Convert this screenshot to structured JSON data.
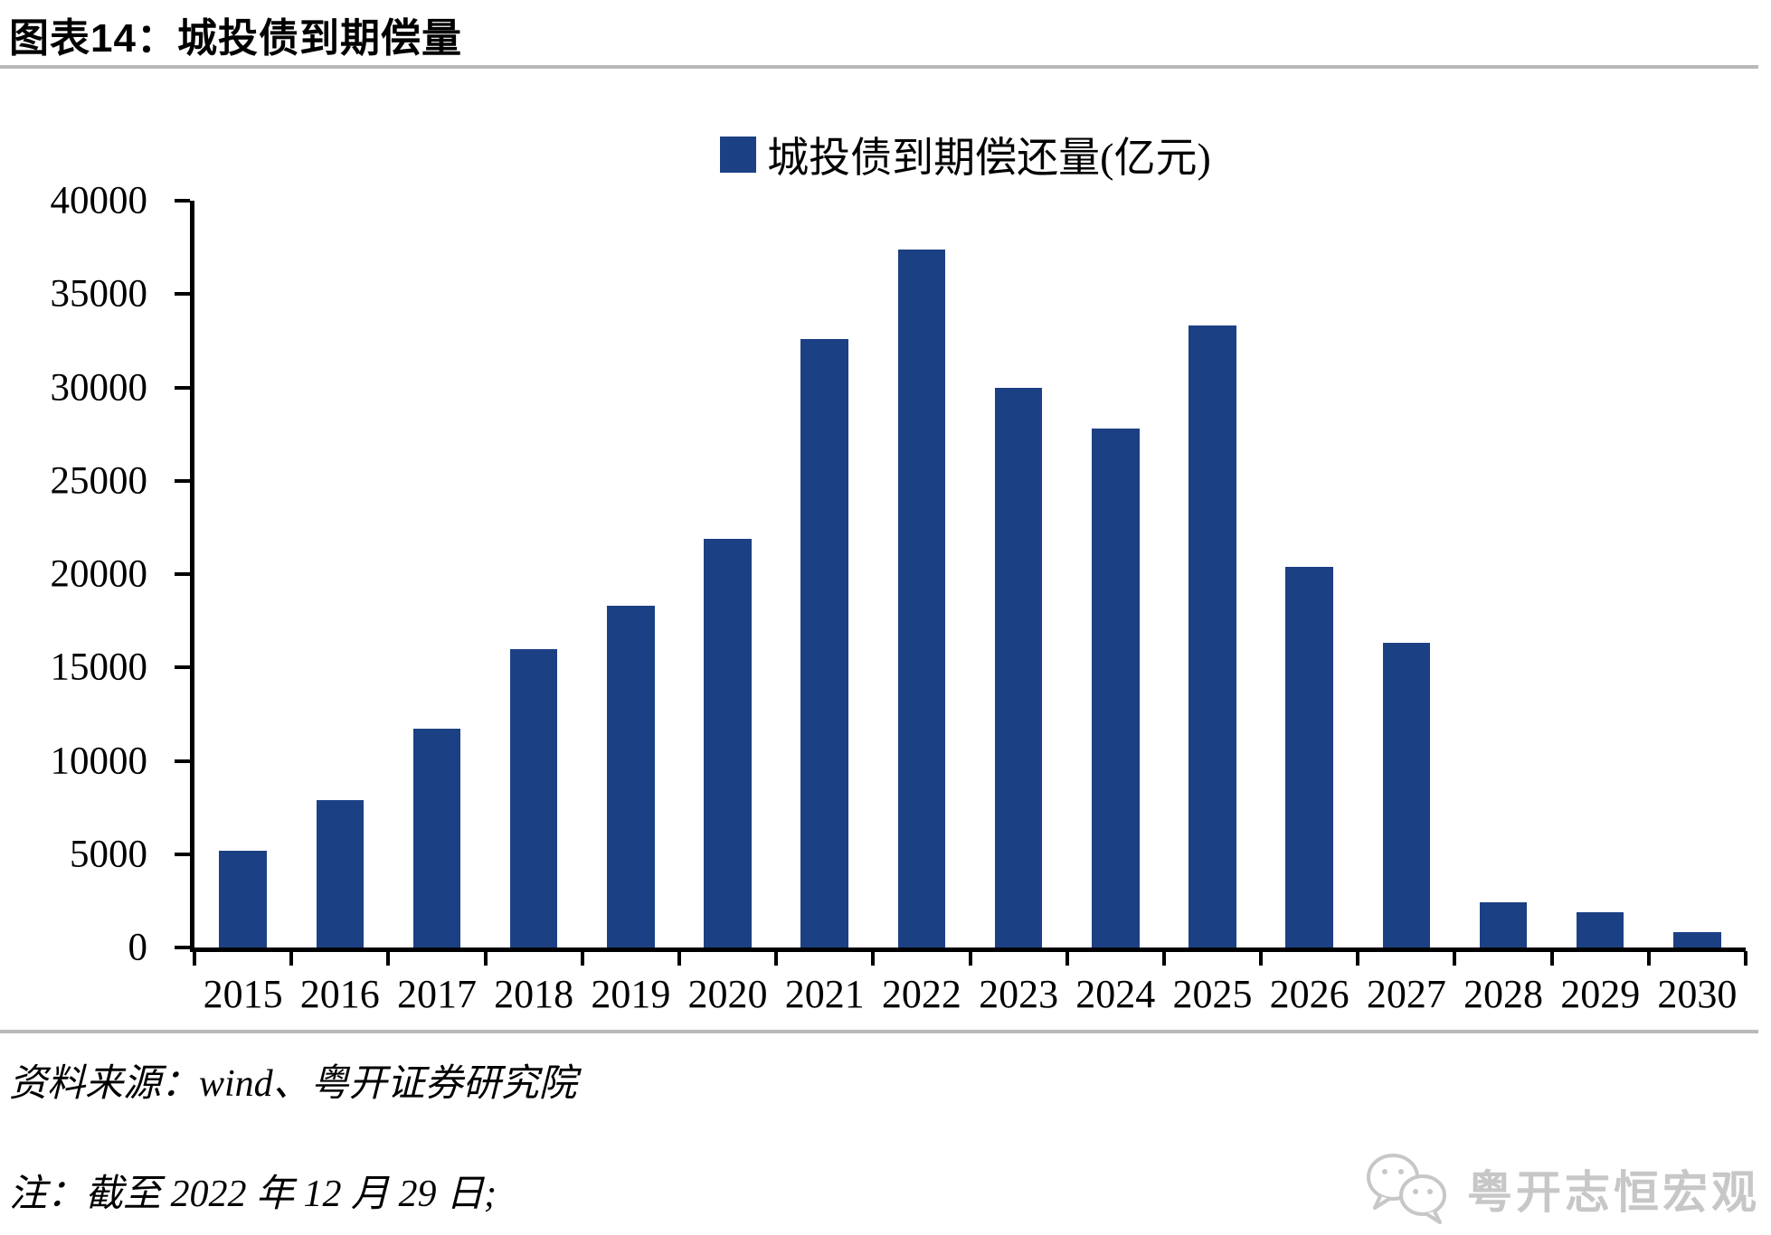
{
  "page": {
    "title": "图表14：城投债到期偿量",
    "source": "资料来源：wind、粤开证券研究院",
    "note": "注：截至 2022 年 12 月 29 日;",
    "logo_text": "粤开志恒宏观"
  },
  "chart_data": {
    "type": "bar",
    "title": "图表14：城投债到期偿量",
    "legend": "城投债到期偿还量(亿元)",
    "legend_position": "top-center",
    "categories": [
      "2015",
      "2016",
      "2017",
      "2018",
      "2019",
      "2020",
      "2021",
      "2022",
      "2023",
      "2024",
      "2025",
      "2026",
      "2027",
      "2028",
      "2029",
      "2030"
    ],
    "values": [
      5200,
      7900,
      11700,
      16000,
      18300,
      21900,
      32600,
      37400,
      30000,
      27800,
      33300,
      20400,
      16300,
      2400,
      1900,
      800
    ],
    "xlabel": "",
    "ylabel": "",
    "ylim": [
      0,
      40000
    ],
    "y_ticks": [
      0,
      5000,
      10000,
      15000,
      20000,
      25000,
      30000,
      35000,
      40000
    ],
    "grid": false,
    "bar_color": "#1c4084",
    "axis_color": "#000000"
  }
}
